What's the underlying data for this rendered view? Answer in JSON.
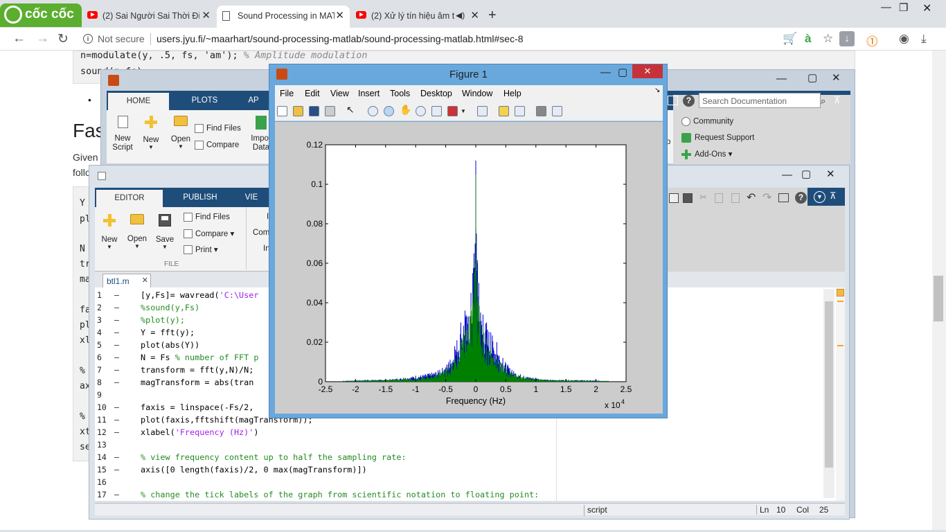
{
  "browser": {
    "brand": "cốc cốc",
    "tabs": [
      {
        "title": "(2) Sai Người Sai Thời Điể",
        "kind": "youtube"
      },
      {
        "title": "Sound Processing in MAT",
        "kind": "doc",
        "active": true
      },
      {
        "title": "(2) Xử lý tín hiệu âm t",
        "kind": "youtube"
      }
    ],
    "not_secure": "Not secure",
    "url": "users.jyu.fi/~maarhart/sound-processing-matlab/sound-processing-matlab.html#sec-8",
    "accent_color": "#5bae2e"
  },
  "page": {
    "code_top_line1": "n=modulate(y, .5, fs, 'am'); ",
    "code_top_comment": "% Amplitude modulation",
    "code_top_line2": "sound(n,fs)",
    "heading": "Fas",
    "para1": "Given",
    "para2": "follo",
    "left_code": [
      "Y",
      "pl",
      "N",
      "tr",
      "ma",
      "fa",
      "pl",
      "xl",
      "%",
      "ax",
      "%",
      "xt",
      "se"
    ]
  },
  "matlab": {
    "tabs": [
      "HOME",
      "PLOTS",
      "AP"
    ],
    "home_buttons": {
      "new_script": "New\nScript",
      "new": "New",
      "open": "Open",
      "find_files": "Find Files",
      "compare": "Compare",
      "import": "Impor\nData"
    },
    "search_placeholder": "Search Documentation",
    "resources": {
      "community": "Community",
      "request_support": "Request Support",
      "addons": "Add-Ons"
    },
    "partial_label": "p"
  },
  "editor": {
    "tabs": [
      "EDITOR",
      "PUBLISH",
      "VIE"
    ],
    "buttons": {
      "new": "New",
      "open": "Open",
      "save": "Save",
      "find_files": "Find Files",
      "compare": "Compare",
      "print": "Print",
      "com": "Com",
      "i": "I",
      "in": "In"
    },
    "file_section": "FILE",
    "doc_tab": "btl1.m",
    "lines": [
      {
        "n": "1",
        "code": "[y,Fs]= wavread('C:\\User",
        "type": "mixed"
      },
      {
        "n": "2",
        "code": "%sound(y,Fs)",
        "type": "comment"
      },
      {
        "n": "3",
        "code": "%plot(y);",
        "type": "comment"
      },
      {
        "n": "4",
        "code": "Y = fft(y);",
        "type": "code"
      },
      {
        "n": "5",
        "code": "plot(abs(Y))",
        "type": "code"
      },
      {
        "n": "6",
        "code": "N = Fs % number of FFT p",
        "type": "mixed6"
      },
      {
        "n": "7",
        "code": "transform = fft(y,N)/N;",
        "type": "code"
      },
      {
        "n": "8",
        "code": "magTransform = abs(tran",
        "type": "code"
      },
      {
        "n": "9",
        "code": "",
        "type": "blank"
      },
      {
        "n": "10",
        "code": "faxis = linspace(-Fs/2,",
        "type": "code"
      },
      {
        "n": "11",
        "code": "plot(faxis,fftshift(magTransform));",
        "type": "code"
      },
      {
        "n": "12",
        "code": "xlabel('Frequency (Hz)')",
        "type": "mixed12"
      },
      {
        "n": "13",
        "code": "",
        "type": "blank"
      },
      {
        "n": "14",
        "code": "% view frequency content up to half the sampling rate:",
        "type": "comment"
      },
      {
        "n": "15",
        "code": "axis([0 length(faxis)/2, 0 max(magTransform)])",
        "type": "code"
      },
      {
        "n": "16",
        "code": "",
        "type": "blank"
      },
      {
        "n": "17",
        "code": "% change the tick labels of the graph from scientific notation to floating point:",
        "type": "comment"
      }
    ],
    "status": {
      "mode": "script",
      "ln_label": "Ln",
      "ln": "10",
      "col_label": "Col",
      "col": "25"
    }
  },
  "figure": {
    "title": "Figure 1",
    "menu": [
      "File",
      "Edit",
      "View",
      "Insert",
      "Tools",
      "Desktop",
      "Window",
      "Help"
    ],
    "window_color": "#69a8dc"
  },
  "chart_data": {
    "type": "line",
    "xlabel": "Frequency (Hz)",
    "x_exponent_label": "x 10",
    "x_exponent": "4",
    "xlim": [
      -2.5,
      2.5
    ],
    "ylim": [
      0,
      0.12
    ],
    "xticks": [
      "-2.5",
      "-2",
      "-1.5",
      "-1",
      "-0.5",
      "0",
      "0.5",
      "1",
      "1.5",
      "2",
      "2.5"
    ],
    "yticks": [
      "0",
      "0.02",
      "0.04",
      "0.06",
      "0.08",
      "0.1",
      "0.12"
    ],
    "series": [
      {
        "color": "#0000cc",
        "x": [
          -2.2,
          -1.8,
          -1.5,
          -1.2,
          -1.0,
          -0.8,
          -0.6,
          -0.45,
          -0.35,
          -0.25,
          -0.18,
          -0.12,
          -0.08,
          -0.05,
          -0.03,
          -0.01,
          0.0,
          0.01,
          0.03,
          0.05,
          0.08,
          0.12,
          0.18,
          0.25,
          0.35,
          0.45,
          0.6,
          0.8,
          1.0,
          1.2,
          1.5,
          1.8,
          2.2
        ],
        "y": [
          0.0005,
          0.001,
          0.001,
          0.002,
          0.003,
          0.004,
          0.006,
          0.01,
          0.018,
          0.03,
          0.036,
          0.033,
          0.045,
          0.055,
          0.065,
          0.07,
          0.112,
          0.075,
          0.06,
          0.05,
          0.035,
          0.034,
          0.03,
          0.025,
          0.02,
          0.012,
          0.006,
          0.003,
          0.002,
          0.001,
          0.001,
          0.0008,
          0.0005
        ]
      },
      {
        "color": "#008000",
        "x": [
          -2.2,
          -1.8,
          -1.5,
          -1.2,
          -1.0,
          -0.8,
          -0.6,
          -0.45,
          -0.35,
          -0.25,
          -0.18,
          -0.12,
          -0.08,
          -0.05,
          -0.03,
          -0.01,
          0.0,
          0.01,
          0.03,
          0.05,
          0.08,
          0.12,
          0.18,
          0.25,
          0.35,
          0.45,
          0.6,
          0.8,
          1.0,
          1.2,
          1.5,
          1.8,
          2.2
        ],
        "y": [
          0.0004,
          0.0008,
          0.001,
          0.0015,
          0.002,
          0.003,
          0.005,
          0.008,
          0.012,
          0.02,
          0.028,
          0.03,
          0.038,
          0.045,
          0.055,
          0.06,
          0.105,
          0.062,
          0.05,
          0.042,
          0.03,
          0.028,
          0.022,
          0.018,
          0.013,
          0.009,
          0.005,
          0.0025,
          0.0015,
          0.001,
          0.0008,
          0.0006,
          0.0004
        ]
      }
    ]
  }
}
